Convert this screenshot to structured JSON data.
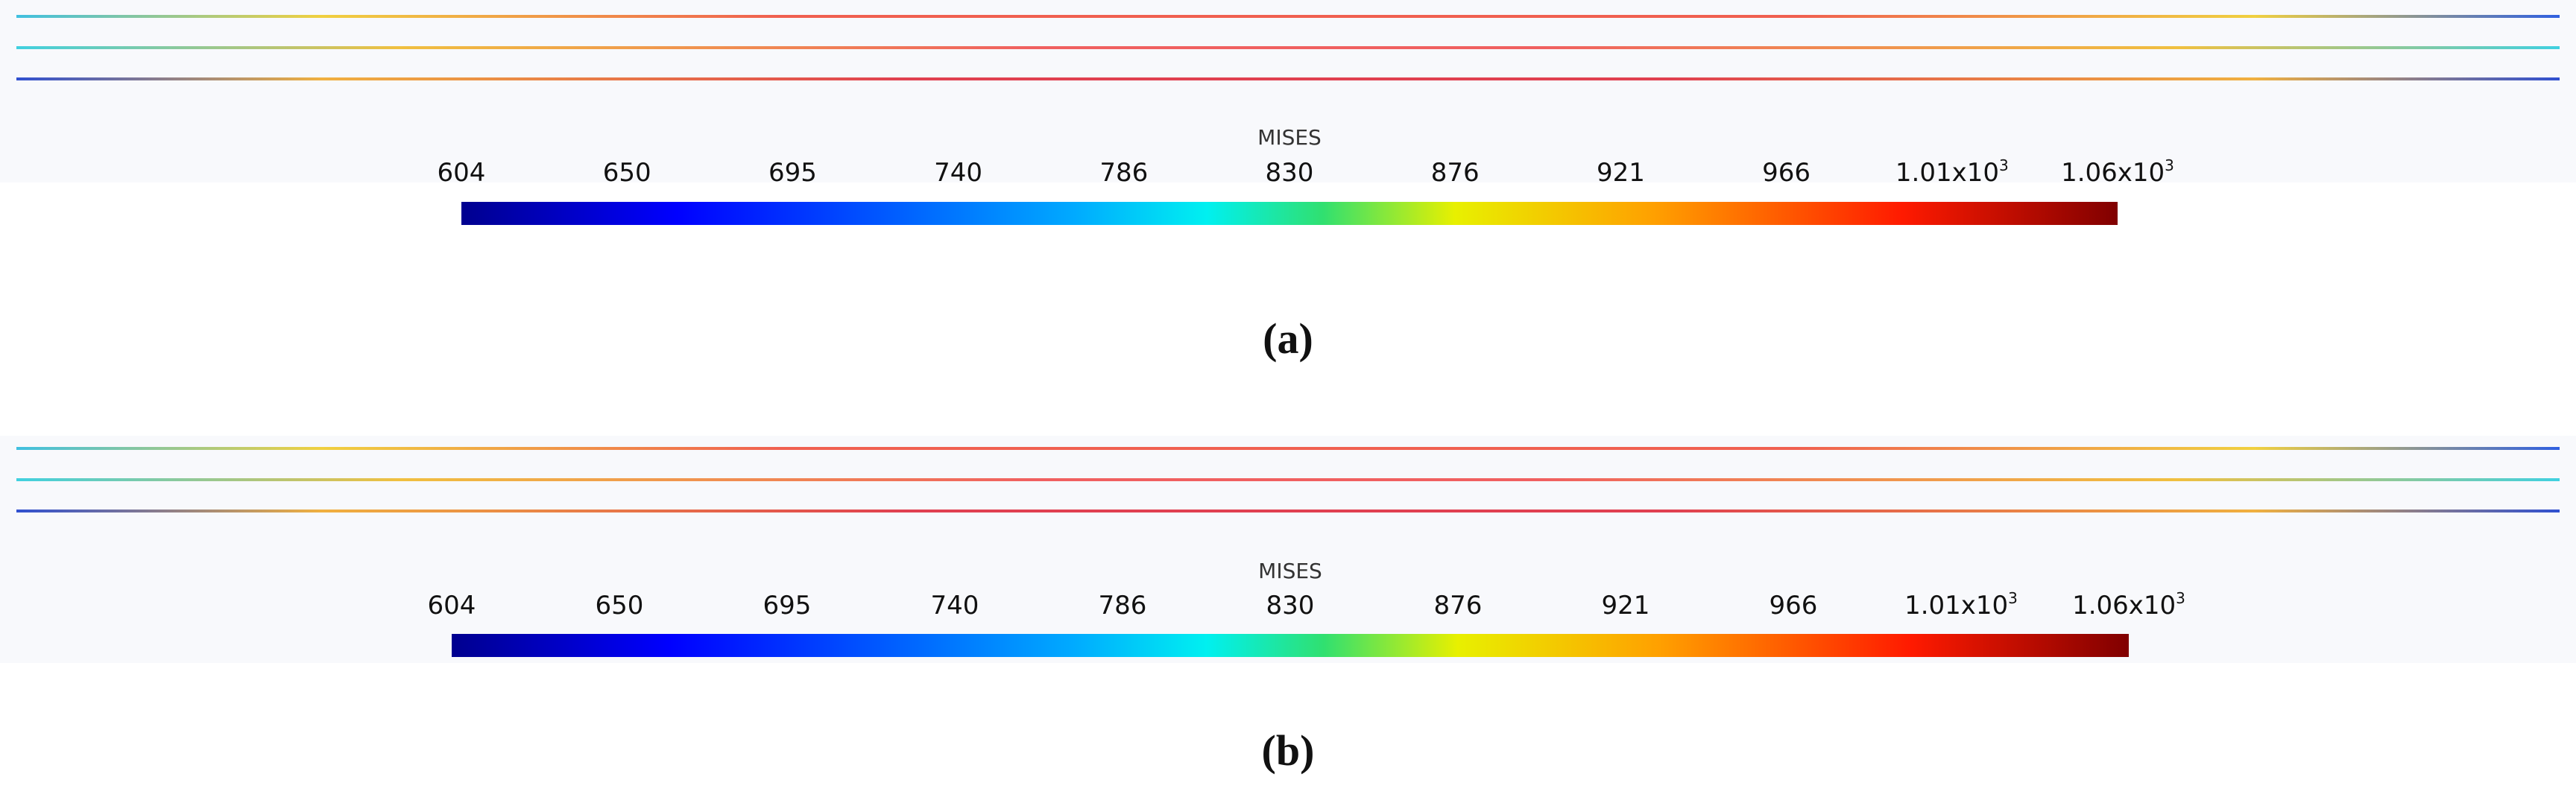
{
  "panels": [
    {
      "caption": "(a)",
      "colorbar": {
        "title": "MISES",
        "ticks": [
          "604",
          "650",
          "695",
          "740",
          "786",
          "830",
          "876",
          "921",
          "966",
          {
            "base": "1.01x10",
            "sup": "3"
          },
          {
            "base": "1.06x10",
            "sup": "3"
          }
        ]
      }
    },
    {
      "caption": "(b)",
      "colorbar": {
        "title": "MISES",
        "ticks": [
          "604",
          "650",
          "695",
          "740",
          "786",
          "830",
          "876",
          "921",
          "966",
          {
            "base": "1.01x10",
            "sup": "3"
          },
          {
            "base": "1.06x10",
            "sup": "3"
          }
        ]
      }
    }
  ]
}
